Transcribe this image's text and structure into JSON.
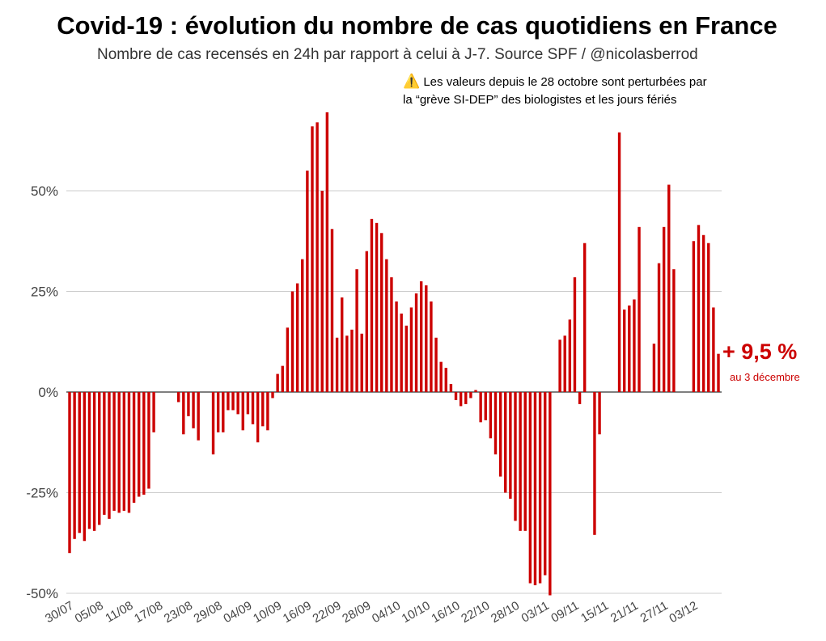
{
  "header": {
    "title": "Covid-19 : évolution du nombre de cas quotidiens en France",
    "subtitle": "Nombre de cas recensés en 24h par rapport à celui à J-7. Source SPF / @nicolasberrod"
  },
  "note": {
    "icon": "warning-icon",
    "line1": "Les valeurs depuis le 28 octobre sont perturbées par",
    "line2": "la “grève SI-DEP” des biologistes et les jours fériés"
  },
  "annotation": {
    "value": "+ 9,5 %",
    "date": "au 3 décembre"
  },
  "colors": {
    "bar": "#cc0000",
    "grid": "#cccccc",
    "axis": "#333333",
    "accent": "#cc0000"
  },
  "chart_data": {
    "type": "bar",
    "title": "Covid-19 : évolution du nombre de cas quotidiens en France",
    "ylabel": "",
    "xlabel": "",
    "ylim": [
      -50,
      60
    ],
    "start_date": "30/07",
    "yticks": [
      50,
      25,
      0,
      -25,
      -50
    ],
    "ytick_labels": [
      "50%",
      "25%",
      "0%",
      "-25%",
      "-50%"
    ],
    "xtick_labels": [
      "30/07",
      "05/08",
      "11/08",
      "17/08",
      "23/08",
      "29/08",
      "04/09",
      "10/09",
      "16/09",
      "22/09",
      "28/09",
      "04/10",
      "10/10",
      "16/10",
      "22/10",
      "28/10",
      "03/11",
      "09/11",
      "15/11",
      "21/11",
      "27/11",
      "03/12"
    ],
    "xtick_every": 6,
    "values": [
      -40,
      -36.5,
      -35,
      -37,
      -34,
      -34.5,
      -33,
      -30.5,
      -31.5,
      -29.5,
      -30,
      -29.5,
      -30,
      -27.5,
      -26,
      -25.5,
      -24,
      -10,
      null,
      null,
      null,
      null,
      -2.5,
      -10.5,
      -6,
      -9,
      -12,
      null,
      null,
      -15.5,
      -10,
      -10,
      -4.5,
      -4.5,
      -5.5,
      -9.5,
      -5.5,
      -8,
      -12.5,
      -8.5,
      -9.5,
      -1.5,
      4.5,
      6.5,
      16,
      25,
      27,
      33,
      55,
      66,
      67,
      50,
      69.5,
      40.5,
      13.5,
      23.5,
      14,
      15.5,
      30.5,
      14.5,
      35,
      43,
      42,
      39.5,
      33,
      28.5,
      22.5,
      19.5,
      16.5,
      21,
      24.5,
      27.5,
      26.5,
      22.5,
      13.5,
      7.5,
      6,
      2,
      -2,
      -3.5,
      -3,
      -1.5,
      0.5,
      -7.5,
      -7,
      -11.5,
      -15.5,
      -21,
      -25,
      -26.5,
      -32,
      -34.5,
      -34.5,
      -47.5,
      -48,
      -47.5,
      -45.5,
      -50.5,
      null,
      13,
      14,
      18,
      28.5,
      -3,
      37,
      null,
      -35.5,
      -10.5,
      null,
      null,
      null,
      64.5,
      20.5,
      21.5,
      23,
      41,
      null,
      null,
      12,
      32,
      41,
      51.5,
      30.5,
      null,
      null,
      null,
      37.5,
      41.5,
      39,
      37,
      21,
      9.5
    ]
  }
}
